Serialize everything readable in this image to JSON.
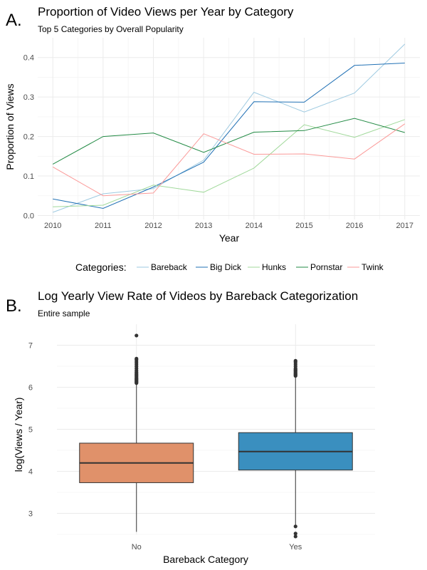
{
  "panels": {
    "a_letter": "A.",
    "b_letter": "B."
  },
  "chart_data": [
    {
      "type": "line",
      "title": "Proportion of Video Views per Year by Category",
      "subtitle": "Top 5 Categories by Overall Popularity",
      "xlabel": "Year",
      "ylabel": "Proportion of Views",
      "x": [
        2010,
        2011,
        2012,
        2013,
        2014,
        2015,
        2016,
        2017
      ],
      "xlim": [
        2009.7,
        2017.3
      ],
      "ylim": [
        -0.01,
        0.45
      ],
      "yticks": [
        0.0,
        0.1,
        0.2,
        0.3,
        0.4
      ],
      "ytick_labels": [
        "0.0",
        "0.1",
        "0.2",
        "0.3",
        "0.4"
      ],
      "grid": true,
      "legend_title": "Categories:",
      "legend_position": "bottom",
      "series": [
        {
          "name": "Bareback",
          "color": "#9ecae1",
          "values": [
            0.008,
            0.055,
            0.068,
            0.14,
            0.312,
            0.262,
            0.31,
            0.434
          ]
        },
        {
          "name": "Big Dick",
          "color": "#2171b5",
          "values": [
            0.042,
            0.018,
            0.072,
            0.135,
            0.288,
            0.287,
            0.38,
            0.386
          ]
        },
        {
          "name": "Hunks",
          "color": "#a1d99b",
          "values": [
            0.022,
            0.026,
            0.077,
            0.059,
            0.12,
            0.23,
            0.198,
            0.243
          ]
        },
        {
          "name": "Pornstar",
          "color": "#238b45",
          "values": [
            0.13,
            0.2,
            0.209,
            0.16,
            0.211,
            0.215,
            0.246,
            0.21
          ]
        },
        {
          "name": "Twink",
          "color": "#fb9a99",
          "values": [
            0.123,
            0.05,
            0.057,
            0.207,
            0.155,
            0.156,
            0.143,
            0.232
          ]
        }
      ]
    },
    {
      "type": "box",
      "title": "Log Yearly View Rate of Videos by Bareback Categorization",
      "subtitle": "Entire sample",
      "xlabel": "Bareback Category",
      "ylabel": "log(Views / Year)",
      "categories": [
        "No",
        "Yes"
      ],
      "ylim": [
        2.5,
        7.5
      ],
      "yticks": [
        3,
        4,
        5,
        6,
        7
      ],
      "ytick_labels": [
        "3",
        "4",
        "5",
        "6",
        "7"
      ],
      "grid": true,
      "boxes": [
        {
          "category": "No",
          "color": "#e0916a",
          "whisker_low": 2.56,
          "q1": 3.73,
          "median": 4.2,
          "q3": 4.67,
          "whisker_high": 6.08,
          "outliers": [
            6.1,
            6.12,
            6.14,
            6.16,
            6.18,
            6.2,
            6.22,
            6.25,
            6.28,
            6.3,
            6.33,
            6.36,
            6.4,
            6.45,
            6.5,
            6.55,
            6.6,
            6.65,
            6.68,
            7.23
          ]
        },
        {
          "category": "Yes",
          "color": "#3a8fbf",
          "whisker_low": 2.73,
          "q1": 4.03,
          "median": 4.47,
          "q3": 4.92,
          "whisker_high": 6.25,
          "outliers": [
            2.45,
            2.52,
            2.69,
            6.27,
            6.29,
            6.31,
            6.33,
            6.35,
            6.38,
            6.4,
            6.42,
            6.45,
            6.5,
            6.55,
            6.6,
            6.63
          ]
        }
      ]
    }
  ]
}
